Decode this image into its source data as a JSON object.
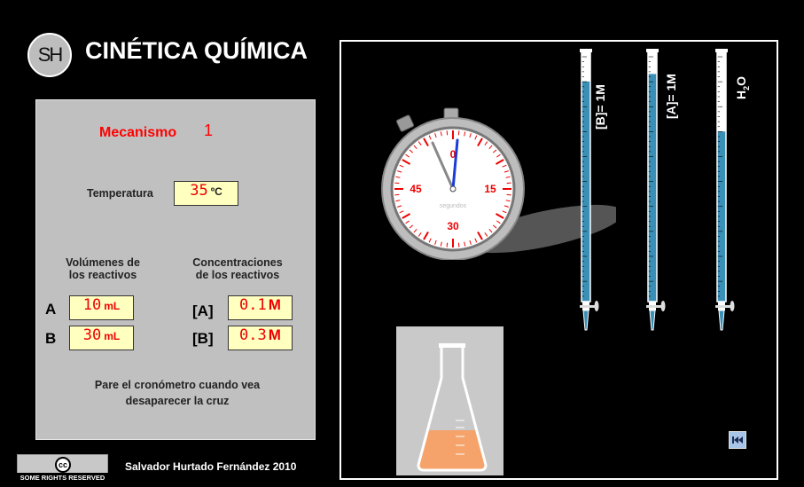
{
  "header": {
    "logo_text": "SH",
    "title": "CINÉTICA QUÍMICA"
  },
  "panel": {
    "mecanismo_label": "Mecanismo",
    "mecanismo_value": "1",
    "temperature_label": "Temperatura",
    "temperature_value": "35",
    "temperature_unit": "ºC",
    "volumes_label_1": "Volúmenes de",
    "volumes_label_2": "los reactivos",
    "conc_label_1": "Concentraciones",
    "conc_label_2": "de los reactivos",
    "reactant_a": "A",
    "reactant_b": "B",
    "volume_a": "10",
    "volume_b": "30",
    "volume_unit": "mL",
    "conc_a_label": "[A]",
    "conc_b_label": "[B]",
    "conc_a": "0.1",
    "conc_b": "0.3",
    "conc_unit": "M",
    "instruction_1": "Pare el cronómetro cuando vea",
    "instruction_2": "desaparecer la cruz"
  },
  "stopwatch": {
    "mark_0": "0",
    "mark_15": "15",
    "mark_30": "30",
    "mark_45": "45",
    "caption": "segundos"
  },
  "burettes": [
    {
      "label": "[B]= 1M",
      "fill_fraction": 0.88
    },
    {
      "label": "[A]= 1M",
      "fill_fraction": 0.91
    },
    {
      "label": "H2O",
      "fill_fraction": 0.68
    }
  ],
  "flask": {
    "fill_fraction": 0.45,
    "liquid_color": "#f5a36a"
  },
  "footer": {
    "author": "Salvador Hurtado Fernández 2010",
    "license": "SOME RIGHTS RESERVED",
    "cc_symbol": "cc"
  },
  "colors": {
    "accent_red": "#ff0000",
    "burette_liquid": "#3a8fb7",
    "panel_bg": "#c0c0c0"
  }
}
